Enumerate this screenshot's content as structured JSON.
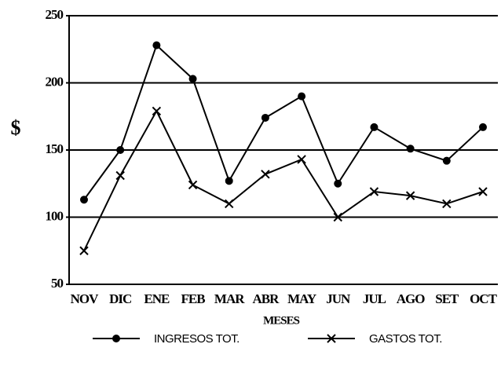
{
  "chart_data": {
    "type": "line",
    "xlabel": "MESES",
    "ylabel": "$",
    "categories": [
      "NOV",
      "DIC",
      "ENE",
      "FEB",
      "MAR",
      "ABR",
      "MAY",
      "JUN",
      "JUL",
      "AGO",
      "SET",
      "OCT"
    ],
    "series": [
      {
        "name": "INGRESOS TOT.",
        "color": "#000000",
        "marker": "circle",
        "values": [
          113,
          150,
          228,
          203,
          127,
          174,
          190,
          125,
          167,
          151,
          142,
          167
        ]
      },
      {
        "name": "GASTOS TOT.",
        "color": "#000000",
        "marker": "x",
        "values": [
          75,
          131,
          179,
          124,
          110,
          132,
          143,
          100,
          119,
          116,
          110,
          119
        ]
      }
    ],
    "ylim": [
      50,
      250
    ],
    "yticks": [
      50,
      100,
      150,
      200,
      250
    ],
    "grid": true,
    "legend": "bottom"
  }
}
